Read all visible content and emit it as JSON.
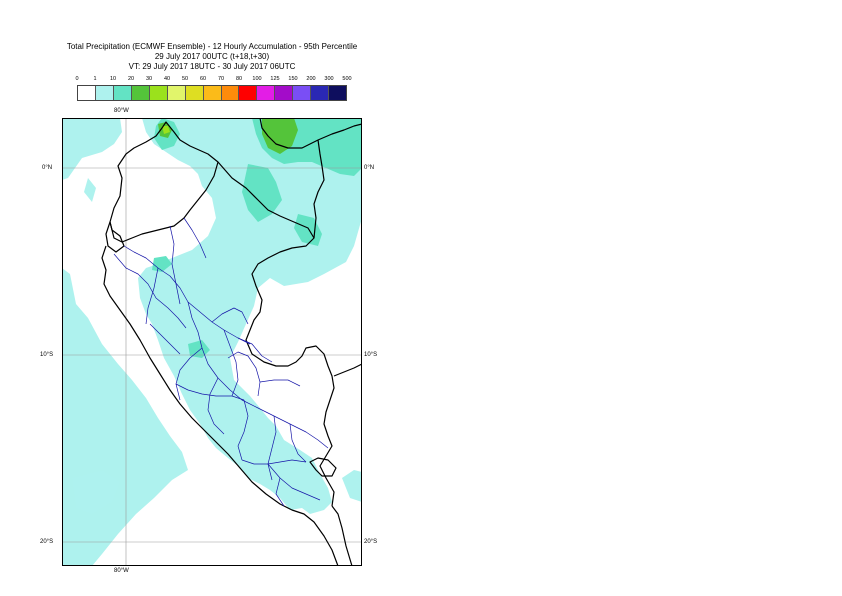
{
  "title": {
    "line1": "Total Precipitation (ECMWF Ensemble) - 12 Hourly Accumulation - 95th Percentile",
    "line2": "29 July 2017 00UTC (t+18,t+30)",
    "line3": "VT: 29 July 2017 18UTC - 30 July 2017 06UTC"
  },
  "legend": {
    "ticks": [
      "0",
      "1",
      "10",
      "20",
      "30",
      "40",
      "50",
      "60",
      "70",
      "80",
      "100",
      "125",
      "150",
      "200",
      "300",
      "500"
    ],
    "colors": [
      "#ffffff",
      "#aef2ee",
      "#63e3c4",
      "#54c43a",
      "#9be11c",
      "#e1f56b",
      "#dede22",
      "#fbbb19",
      "#fe8b0b",
      "#ff0000",
      "#e31de6",
      "#a30cc9",
      "#7a4ef5",
      "#2a28b4",
      "#0e0e5e"
    ]
  },
  "map": {
    "lon_labels": {
      "top": "80°W",
      "bottom": "80°W"
    },
    "lat_labels": [
      {
        "label": "0°N"
      },
      {
        "label": "10°S"
      },
      {
        "label": "20°S"
      }
    ],
    "colors": {
      "light": "#aef2ee",
      "medium": "#63e3c4",
      "green": "#54c43a",
      "yellowgreen": "#9be11c",
      "coast": "#000000",
      "admin": "#1616a8",
      "grid": "#9a9a9a"
    }
  }
}
